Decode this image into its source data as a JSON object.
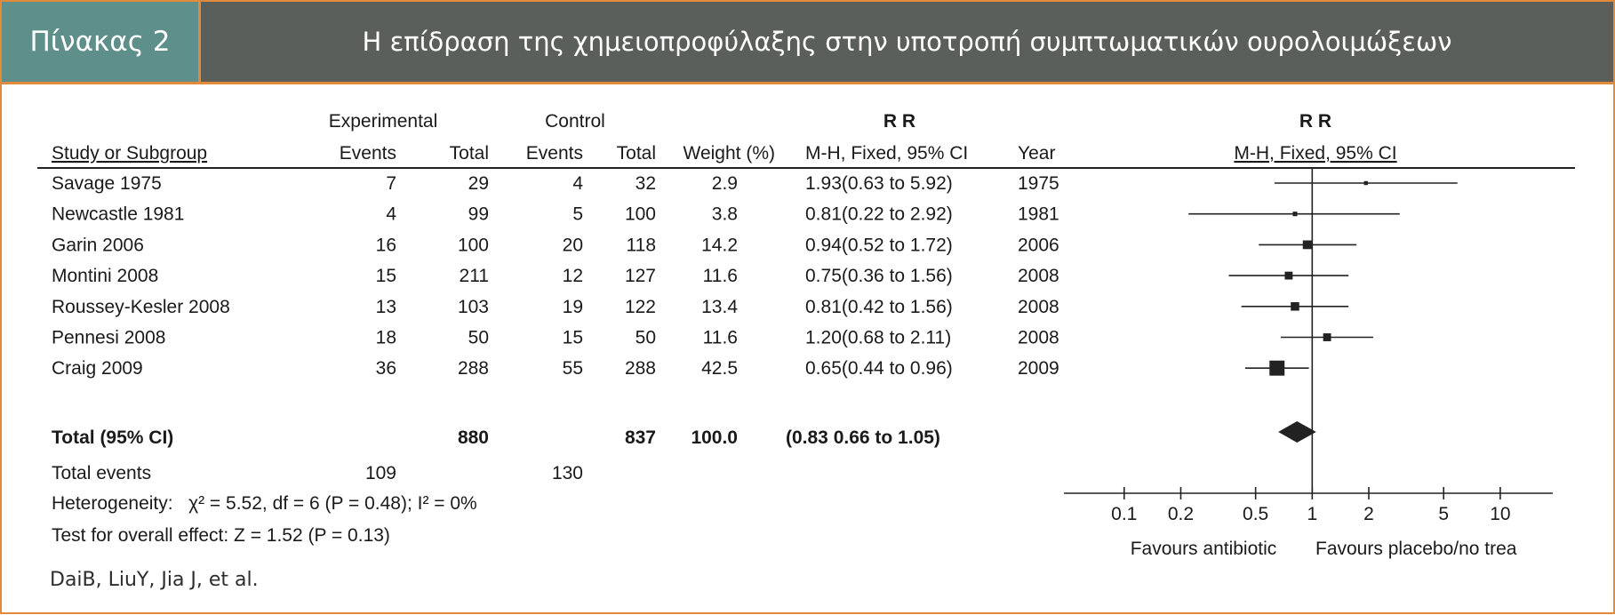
{
  "header": {
    "label": "Πίνακας 2",
    "title": "Η επίδραση της χημειοπροφύλαξης στην υποτροπή συμπτωματικών ουρολοιμώξεων"
  },
  "table": {
    "group_headers": {
      "experimental": "Experimental",
      "control": "Control",
      "rr1": "R R",
      "rr2": "R R"
    },
    "columns": {
      "study": "Study or Subgroup",
      "exp_events": "Events",
      "exp_total": "Total",
      "ctl_events": "Events",
      "ctl_total": "Total",
      "weight": "Weight (%)",
      "rr": "M-H, Fixed, 95% CI",
      "year": "Year",
      "plot": "M-H, Fixed, 95% CI"
    },
    "total_row": {
      "label": "Total (95% CI)",
      "exp_total": "880",
      "ctl_total": "837",
      "weight": "100.0",
      "rr": "(0.83  0.66 to 1.05)"
    },
    "total_events": {
      "label": "Total events",
      "exp": "109",
      "ctl": "130"
    },
    "heterogeneity": "Heterogeneity:   χ² = 5.52, df = 6 (P = 0.48); I² = 0%",
    "overall_effect": "Test for overall effect: Z = 1.52 (P = 0.13)"
  },
  "chart_data": {
    "type": "scatter",
    "title": "M-H, Fixed, 95% CI",
    "xscale": "log",
    "xlim": [
      0.07,
      13
    ],
    "xticks": [
      0.1,
      0.2,
      0.5,
      1,
      2,
      5,
      10
    ],
    "xtick_labels": [
      "0.1",
      "0.2",
      "0.5",
      "1",
      "2",
      "5",
      "10"
    ],
    "xlabel_left": "Favours antibiotic",
    "xlabel_right": "Favours placebo/no trea",
    "studies": [
      {
        "name": "Savage 1975",
        "exp_events": "7",
        "exp_total": "29",
        "ctl_events": "4",
        "ctl_total": "32",
        "weight": "2.9",
        "rr_text": "1.93(0.63 to 5.92)",
        "year": "1975",
        "rr": 1.93,
        "lo": 0.63,
        "hi": 5.92,
        "w": 2.9
      },
      {
        "name": "Newcastle 1981",
        "exp_events": "4",
        "exp_total": "99",
        "ctl_events": "5",
        "ctl_total": "100",
        "weight": "3.8",
        "rr_text": "0.81(0.22 to 2.92)",
        "year": "1981",
        "rr": 0.81,
        "lo": 0.22,
        "hi": 2.92,
        "w": 3.8
      },
      {
        "name": "Garin 2006",
        "exp_events": "16",
        "exp_total": "100",
        "ctl_events": "20",
        "ctl_total": "118",
        "weight": "14.2",
        "rr_text": "0.94(0.52 to 1.72)",
        "year": "2006",
        "rr": 0.94,
        "lo": 0.52,
        "hi": 1.72,
        "w": 14.2
      },
      {
        "name": "Montini 2008",
        "exp_events": "15",
        "exp_total": "211",
        "ctl_events": "12",
        "ctl_total": "127",
        "weight": "11.6",
        "rr_text": "0.75(0.36 to 1.56)",
        "year": "2008",
        "rr": 0.75,
        "lo": 0.36,
        "hi": 1.56,
        "w": 11.6
      },
      {
        "name": "Roussey-Kesler 2008",
        "exp_events": "13",
        "exp_total": "103",
        "ctl_events": "19",
        "ctl_total": "122",
        "weight": "13.4",
        "rr_text": "0.81(0.42 to 1.56)",
        "year": "2008",
        "rr": 0.81,
        "lo": 0.42,
        "hi": 1.56,
        "w": 13.4
      },
      {
        "name": "Pennesi  2008",
        "exp_events": "18",
        "exp_total": "50",
        "ctl_events": "15",
        "ctl_total": "50",
        "weight": "11.6",
        "rr_text": "1.20(0.68 to 2.11)",
        "year": "2008",
        "rr": 1.2,
        "lo": 0.68,
        "hi": 2.11,
        "w": 11.6
      },
      {
        "name": "Craig 2009",
        "exp_events": "36",
        "exp_total": "288",
        "ctl_events": "55",
        "ctl_total": "288",
        "weight": "42.5",
        "rr_text": "0.65(0.44 to 0.96)",
        "year": "2009",
        "rr": 0.65,
        "lo": 0.44,
        "hi": 0.96,
        "w": 42.5
      }
    ],
    "pooled": {
      "rr": 0.83,
      "lo": 0.66,
      "hi": 1.05
    }
  },
  "citation": "DaiB, LiuY, Jia J, et al."
}
